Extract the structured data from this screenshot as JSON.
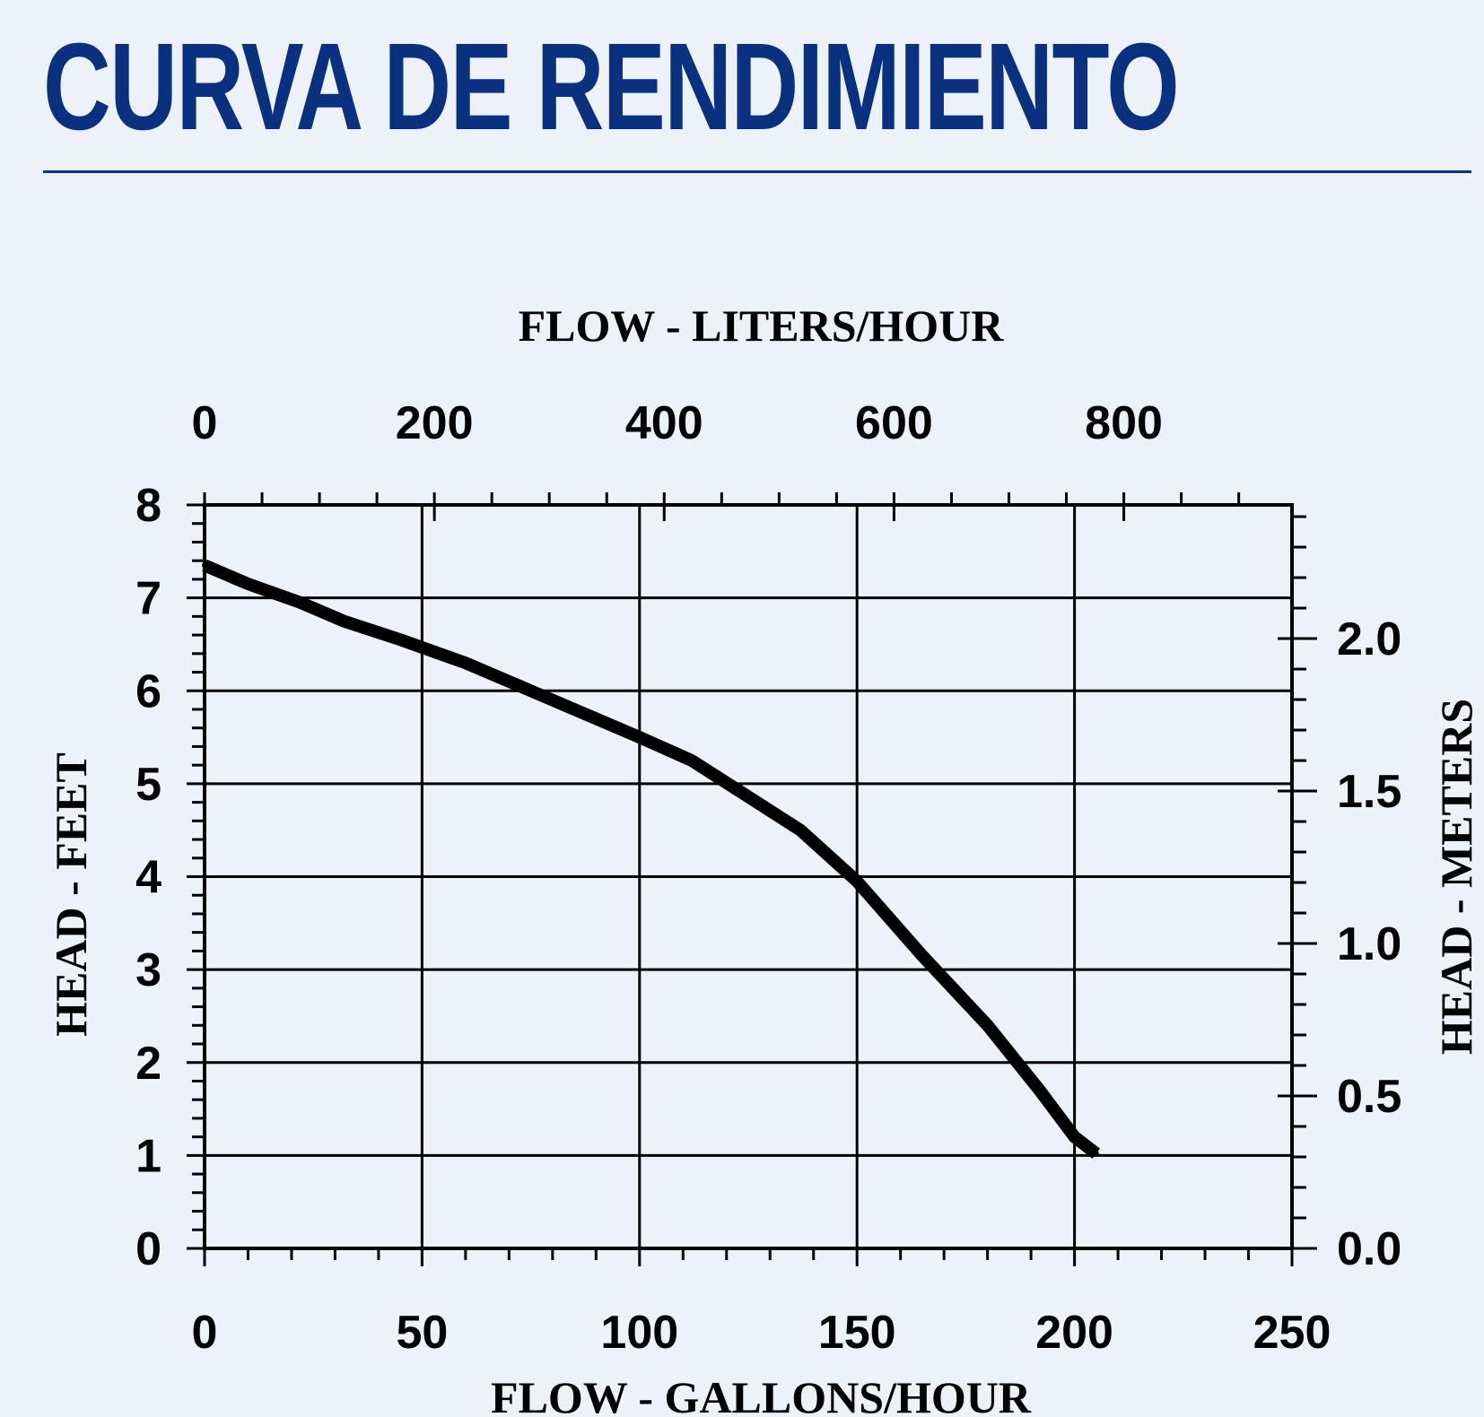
{
  "page": {
    "title": "CURVA DE RENDIMIENTO",
    "title_color": "#0a3180",
    "background_color": "#edf2f9"
  },
  "chart_data": {
    "type": "line",
    "title": "",
    "xlabel": "FLOW - GALLONS/HOUR",
    "ylabel": "HEAD - FEET",
    "x2label": "FLOW - LITERS/HOUR",
    "y2label": "HEAD - METERS",
    "xlim": [
      0,
      250
    ],
    "ylim": [
      0,
      8
    ],
    "x2lim": [
      0,
      946.35
    ],
    "y2lim": [
      0,
      2.4384
    ],
    "xticks": [
      "0",
      "50",
      "100",
      "150",
      "200",
      "250"
    ],
    "yticks": [
      "0",
      "1",
      "2",
      "3",
      "4",
      "5",
      "6",
      "7",
      "8"
    ],
    "x2ticks": [
      "0",
      "200",
      "400",
      "600",
      "800"
    ],
    "y2ticks": [
      "0.0",
      "0.5",
      "1.0",
      "1.5",
      "2.0"
    ],
    "grid": true,
    "legend": "none",
    "line_color": "#000000",
    "series": [
      {
        "x": [
          0,
          10,
          22,
          32,
          45,
          60,
          75,
          90,
          100,
          112,
          122,
          137,
          150,
          165,
          180,
          192,
          200,
          205
        ],
        "y": [
          7.35,
          7.15,
          6.95,
          6.75,
          6.55,
          6.3,
          6.0,
          5.7,
          5.5,
          5.25,
          4.95,
          4.5,
          3.95,
          3.15,
          2.4,
          1.7,
          1.2,
          1.02
        ]
      }
    ]
  }
}
